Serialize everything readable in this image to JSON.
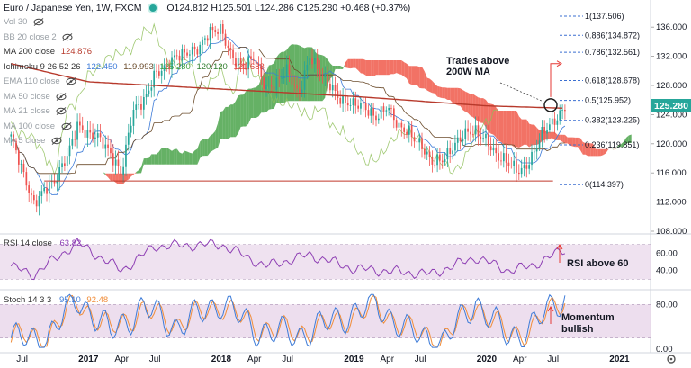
{
  "header": {
    "title": "Euro / Japanese Yen",
    "interval": "1W",
    "source": "FXCM",
    "open": "O124.812",
    "high": "H125.501",
    "low": "L124.286",
    "close": "C125.280",
    "change": "+0.468 (+0.37%)"
  },
  "indicators": [
    {
      "label": "Vol 30",
      "values": []
    },
    {
      "label": "BB 20 close 2",
      "values": []
    },
    {
      "label": "MA 200 close",
      "values": [
        "124.876"
      ]
    },
    {
      "label": "Ichimoku 9 26 52 26",
      "values": [
        "122.450",
        "119.993",
        "125.280",
        "120.120",
        "121.683"
      ]
    },
    {
      "label": "EMA 110 close",
      "values": []
    },
    {
      "label": "MA 50 close",
      "values": []
    },
    {
      "label": "MA 21 close",
      "values": []
    },
    {
      "label": "MA 100 close",
      "values": []
    },
    {
      "label": "MA 5 close",
      "values": []
    }
  ],
  "colors": {
    "bull": "#26a69a",
    "bear": "#ef5350",
    "ma200": "#b7392b",
    "kumo_bull": "#3f9e3f",
    "kumo_bear": "#ef4f3f",
    "fib": "#3b6fd1",
    "rsi": "#8e3fb4",
    "stoch_k": "#3d7bd8",
    "stoch_d": "#f08d3a",
    "band": "#e8d6ea",
    "price_tag": "#26a69a"
  },
  "annotations": {
    "trades_above": "Trades above\n200W MA",
    "rsi_note": "RSI above 60",
    "momentum_note": "Momentum\nbullish"
  },
  "price_axis": {
    "ticks": [
      "136.000",
      "132.000",
      "128.000",
      "124.000",
      "120.000",
      "116.000",
      "112.000",
      "108.000"
    ],
    "last_price": "125.280"
  },
  "fib_levels": [
    {
      "label": "1(137.506)",
      "value": 137.506
    },
    {
      "label": "0.886(134.872)",
      "value": 134.872
    },
    {
      "label": "0.786(132.561)",
      "value": 132.561
    },
    {
      "label": "0.618(128.678)",
      "value": 128.678
    },
    {
      "label": "0.5(125.952)",
      "value": 125.952
    },
    {
      "label": "0.382(123.225)",
      "value": 123.225
    },
    {
      "label": "0.236(119.851)",
      "value": 119.851
    },
    {
      "label": "0(114.397)",
      "value": 114.397
    }
  ],
  "rsi_panel": {
    "label": "RSI 14 close",
    "value": "63.82",
    "ticks": [
      "60.00",
      "40.00"
    ]
  },
  "stoch_panel": {
    "label": "Stoch 14 3 3",
    "k": "95.10",
    "d": "92.48",
    "ticks": [
      "80.00",
      "0.00"
    ]
  },
  "time_axis": [
    "Jul",
    "2017",
    "Apr",
    "Jul",
    "2018",
    "Apr",
    "Jul",
    "2019",
    "Apr",
    "Jul",
    "2020",
    "Apr",
    "Jul",
    "2021"
  ],
  "chart_data": {
    "type": "candlestick",
    "title": "Euro / Japanese Yen",
    "interval": "1W",
    "ylim": [
      108,
      138
    ],
    "x_range": [
      "2016-05",
      "2021-03"
    ],
    "approx_weekly_close_path": [
      {
        "date": "2016-06",
        "close": 121
      },
      {
        "date": "2016-07",
        "close": 116
      },
      {
        "date": "2016-08",
        "close": 112
      },
      {
        "date": "2016-09",
        "close": 114
      },
      {
        "date": "2016-10",
        "close": 114.5
      },
      {
        "date": "2016-11",
        "close": 118
      },
      {
        "date": "2016-12",
        "close": 123
      },
      {
        "date": "2017-01",
        "close": 121
      },
      {
        "date": "2017-02",
        "close": 120.5
      },
      {
        "date": "2017-03",
        "close": 119
      },
      {
        "date": "2017-04",
        "close": 116
      },
      {
        "date": "2017-05",
        "close": 124
      },
      {
        "date": "2017-06",
        "close": 126
      },
      {
        "date": "2017-07",
        "close": 130
      },
      {
        "date": "2017-08",
        "close": 130
      },
      {
        "date": "2017-09",
        "close": 132
      },
      {
        "date": "2017-10",
        "close": 133
      },
      {
        "date": "2017-11",
        "close": 133
      },
      {
        "date": "2017-12",
        "close": 135
      },
      {
        "date": "2018-01",
        "close": 136
      },
      {
        "date": "2018-02",
        "close": 132
      },
      {
        "date": "2018-03",
        "close": 130
      },
      {
        "date": "2018-04",
        "close": 132
      },
      {
        "date": "2018-05",
        "close": 128
      },
      {
        "date": "2018-06",
        "close": 128
      },
      {
        "date": "2018-07",
        "close": 130
      },
      {
        "date": "2018-08",
        "close": 127
      },
      {
        "date": "2018-09",
        "close": 132
      },
      {
        "date": "2018-10",
        "close": 129
      },
      {
        "date": "2018-11",
        "close": 128
      },
      {
        "date": "2018-12",
        "close": 126
      },
      {
        "date": "2019-01",
        "close": 125
      },
      {
        "date": "2019-02",
        "close": 125
      },
      {
        "date": "2019-03",
        "close": 124
      },
      {
        "date": "2019-04",
        "close": 125
      },
      {
        "date": "2019-05",
        "close": 122
      },
      {
        "date": "2019-06",
        "close": 122
      },
      {
        "date": "2019-07",
        "close": 120
      },
      {
        "date": "2019-08",
        "close": 117
      },
      {
        "date": "2019-09",
        "close": 118
      },
      {
        "date": "2019-10",
        "close": 120
      },
      {
        "date": "2019-11",
        "close": 121
      },
      {
        "date": "2019-12",
        "close": 121.5
      },
      {
        "date": "2020-01",
        "close": 121
      },
      {
        "date": "2020-02",
        "close": 118
      },
      {
        "date": "2020-03",
        "close": 117
      },
      {
        "date": "2020-04",
        "close": 116.5
      },
      {
        "date": "2020-05",
        "close": 118
      },
      {
        "date": "2020-06",
        "close": 121
      },
      {
        "date": "2020-07",
        "close": 123
      },
      {
        "date": "2020-08",
        "close": 125.3
      }
    ],
    "ma200_path": [
      {
        "date": "2016-06",
        "value": 131
      },
      {
        "date": "2017-01",
        "value": 128.5
      },
      {
        "date": "2018-01",
        "value": 127.5
      },
      {
        "date": "2019-01",
        "value": 126.5
      },
      {
        "date": "2020-01",
        "value": 125.2
      },
      {
        "date": "2020-08",
        "value": 124.876
      }
    ],
    "support_line": {
      "value": 114.9,
      "from": "2016-09",
      "to": "2020-07"
    },
    "rsi_path": [
      {
        "date": "2016-06",
        "value": 45
      },
      {
        "date": "2016-08",
        "value": 35
      },
      {
        "date": "2016-12",
        "value": 72
      },
      {
        "date": "2017-04",
        "value": 40
      },
      {
        "date": "2017-07",
        "value": 68
      },
      {
        "date": "2018-01",
        "value": 70
      },
      {
        "date": "2018-05",
        "value": 45
      },
      {
        "date": "2018-09",
        "value": 58
      },
      {
        "date": "2019-01",
        "value": 42
      },
      {
        "date": "2019-08",
        "value": 36
      },
      {
        "date": "2019-12",
        "value": 55
      },
      {
        "date": "2020-03",
        "value": 40
      },
      {
        "date": "2020-05",
        "value": 45
      },
      {
        "date": "2020-08",
        "value": 63.82
      }
    ],
    "stoch_path": [
      {
        "date": "2016-06",
        "k": 20,
        "d": 25
      },
      {
        "date": "2016-09",
        "k": 15,
        "d": 18
      },
      {
        "date": "2016-12",
        "k": 90,
        "d": 85
      },
      {
        "date": "2017-03",
        "k": 30,
        "d": 35
      },
      {
        "date": "2017-06",
        "k": 75,
        "d": 70
      },
      {
        "date": "2017-09",
        "k": 40,
        "d": 45
      },
      {
        "date": "2018-01",
        "k": 85,
        "d": 80
      },
      {
        "date": "2018-04",
        "k": 35,
        "d": 40
      },
      {
        "date": "2018-08",
        "k": 25,
        "d": 30
      },
      {
        "date": "2018-11",
        "k": 50,
        "d": 45
      },
      {
        "date": "2019-03",
        "k": 80,
        "d": 75
      },
      {
        "date": "2019-06",
        "k": 30,
        "d": 35
      },
      {
        "date": "2019-09",
        "k": 10,
        "d": 15
      },
      {
        "date": "2019-12",
        "k": 85,
        "d": 80
      },
      {
        "date": "2020-03",
        "k": 20,
        "d": 25
      },
      {
        "date": "2020-05",
        "k": 40,
        "d": 35
      },
      {
        "date": "2020-08",
        "k": 95.1,
        "d": 92.48
      }
    ]
  }
}
